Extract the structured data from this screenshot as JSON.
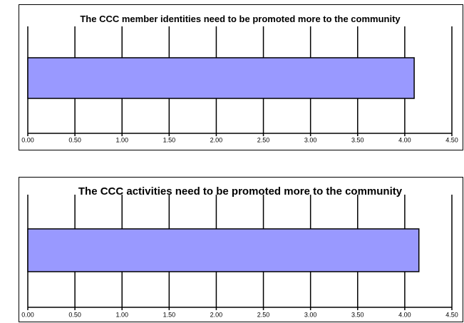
{
  "chart_data": [
    {
      "type": "bar",
      "orientation": "horizontal",
      "title": "The CCC member identities need to be promoted more to the community",
      "categories": [
        null
      ],
      "values": [
        4.1
      ],
      "color": "#9999ff",
      "xlim": [
        0,
        4.5
      ],
      "xticks": [
        {
          "value": 0,
          "label": "0.00"
        },
        {
          "value": 0.5,
          "label": "0.50"
        },
        {
          "value": 1,
          "label": "1.00"
        },
        {
          "value": 1.5,
          "label": "1.50"
        },
        {
          "value": 2,
          "label": "2.00"
        },
        {
          "value": 2.5,
          "label": "2.50"
        },
        {
          "value": 3,
          "label": "3.00"
        },
        {
          "value": 3.5,
          "label": "3.50"
        },
        {
          "value": 4,
          "label": "4.00"
        },
        {
          "value": 4.5,
          "label": "4.50"
        }
      ],
      "grid": true
    },
    {
      "type": "bar",
      "orientation": "horizontal",
      "title": "The CCC activities need to be promoted more to the community",
      "categories": [
        null
      ],
      "values": [
        4.15
      ],
      "color": "#9999ff",
      "xlim": [
        0,
        4.5
      ],
      "xticks": [
        {
          "value": 0,
          "label": "0.00"
        },
        {
          "value": 0.5,
          "label": "0.50"
        },
        {
          "value": 1,
          "label": "1.00"
        },
        {
          "value": 1.5,
          "label": "1.50"
        },
        {
          "value": 2,
          "label": "2.00"
        },
        {
          "value": 2.5,
          "label": "2.50"
        },
        {
          "value": 3,
          "label": "3.00"
        },
        {
          "value": 3.5,
          "label": "3.50"
        },
        {
          "value": 4,
          "label": "4.00"
        },
        {
          "value": 4.5,
          "label": "4.50"
        }
      ],
      "grid": true
    }
  ]
}
